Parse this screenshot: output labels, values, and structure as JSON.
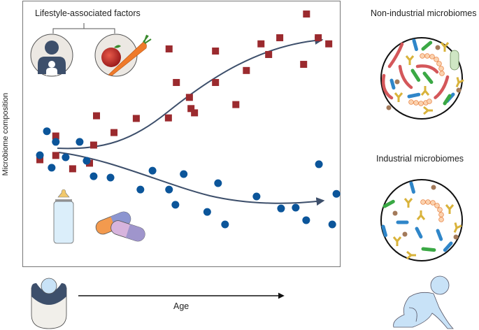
{
  "chart_data": {
    "type": "scatter",
    "title": "",
    "xlabel": "Age",
    "ylabel": "Microbiome composition",
    "xlim": [
      0,
      100
    ],
    "ylim": [
      0,
      100
    ],
    "grid": false,
    "annotation": "Lifestyle-associated factors",
    "series": [
      {
        "name": "Non-industrial microbiomes",
        "marker": "square",
        "color": "#9b2a2e",
        "points": [
          [
            5.5,
            40.3
          ],
          [
            10.5,
            49.2
          ],
          [
            10.5,
            41.9
          ],
          [
            15.8,
            36.9
          ],
          [
            21.1,
            39
          ],
          [
            22.4,
            45.8
          ],
          [
            23.3,
            56.8
          ],
          [
            28.8,
            50.5
          ],
          [
            35.8,
            55.8
          ],
          [
            45.9,
            56
          ],
          [
            46.1,
            81.9
          ],
          [
            52.5,
            63.7
          ],
          [
            53,
            59.5
          ],
          [
            54.1,
            57.9
          ],
          [
            48.4,
            69.3
          ],
          [
            60.7,
            69.3
          ],
          [
            60.7,
            81.1
          ],
          [
            67.1,
            61
          ],
          [
            70.4,
            73.8
          ],
          [
            75,
            83.8
          ],
          [
            77.4,
            79.8
          ],
          [
            80.9,
            86.1
          ],
          [
            88.4,
            76.1
          ],
          [
            89.3,
            95
          ],
          [
            93,
            86.1
          ],
          [
            96.3,
            83.8
          ]
        ],
        "trend": "increasing"
      },
      {
        "name": "Industrial microbiomes",
        "marker": "circle",
        "color": "#0b559a",
        "points": [
          [
            7.7,
            51
          ],
          [
            10.5,
            47
          ],
          [
            18,
            47
          ],
          [
            5.5,
            42
          ],
          [
            9.2,
            37.3
          ],
          [
            13.6,
            41.2
          ],
          [
            20.2,
            39.9
          ],
          [
            22.4,
            34.1
          ],
          [
            27.7,
            33.6
          ],
          [
            37.1,
            29.1
          ],
          [
            40.9,
            36.2
          ],
          [
            46.1,
            29.1
          ],
          [
            48.1,
            23.4
          ],
          [
            50.7,
            34.9
          ],
          [
            58.1,
            20.7
          ],
          [
            61.5,
            31.5
          ],
          [
            63.7,
            16
          ],
          [
            73.6,
            26.5
          ],
          [
            81.3,
            22
          ],
          [
            85.9,
            22.3
          ],
          [
            89.2,
            17.6
          ],
          [
            93.2,
            38.6
          ],
          [
            98.7,
            27.5
          ],
          [
            97.4,
            16
          ]
        ],
        "trend": "decreasing"
      }
    ]
  },
  "panels": {
    "top_label": "Lifestyle-associated factors",
    "y_axis_label": "Microbiome composition",
    "x_axis_label": "Age",
    "right_top_label": "Non-industrial microbiomes",
    "right_bottom_label": "Industrial microbiomes"
  },
  "colors": {
    "square": "#9b2a2e",
    "circle": "#0b559a",
    "trend_line": "#3d4f6b",
    "frame": "#777777"
  },
  "icons": [
    "parent-child-icon",
    "apple-carrot-icon",
    "baby-bottle-icon",
    "pills-icon",
    "newborn-icon",
    "crawling-baby-icon",
    "non-industrial-microbiome-icon",
    "industrial-microbiome-icon"
  ]
}
